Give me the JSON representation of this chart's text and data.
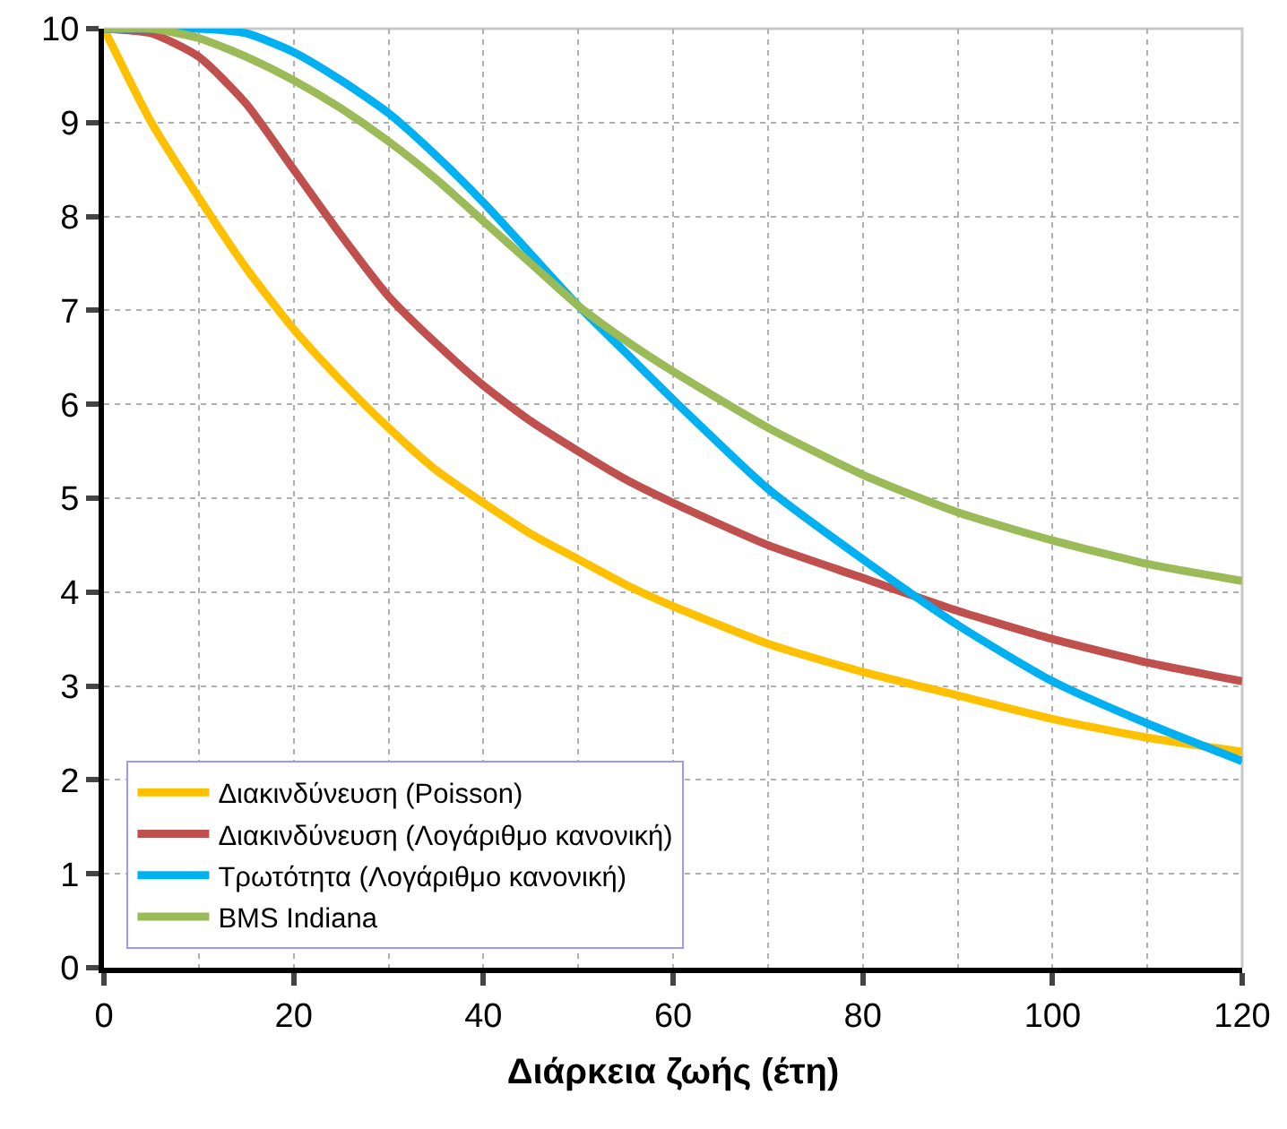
{
  "chart_data": {
    "type": "line",
    "xlabel": "Διάρκεια ζωής (έτη)",
    "x": [
      0,
      5,
      10,
      15,
      20,
      25,
      30,
      35,
      40,
      45,
      50,
      55,
      60,
      70,
      80,
      90,
      100,
      110,
      120
    ],
    "series": [
      {
        "name": "Διακινδύνευση (Poisson)",
        "color": "#ffc000",
        "values": [
          10,
          9.0,
          8.2,
          7.45,
          6.8,
          6.25,
          5.75,
          5.3,
          4.95,
          4.62,
          4.35,
          4.08,
          3.85,
          3.45,
          3.15,
          2.9,
          2.65,
          2.45,
          2.3
        ]
      },
      {
        "name": "Διακινδύνευση (Λογάριθμο κανονική)",
        "color": "#c0504d",
        "values": [
          10,
          9.95,
          9.7,
          9.2,
          8.5,
          7.8,
          7.15,
          6.65,
          6.2,
          5.82,
          5.5,
          5.2,
          4.95,
          4.5,
          4.15,
          3.8,
          3.5,
          3.25,
          3.05
        ]
      },
      {
        "name": "Τρωτότητα (Λογάριθμο κανονική)",
        "color": "#00b0f0",
        "values": [
          10,
          10,
          10,
          9.95,
          9.75,
          9.45,
          9.1,
          8.65,
          8.15,
          7.6,
          7.05,
          6.55,
          6.05,
          5.1,
          4.35,
          3.65,
          3.05,
          2.6,
          2.2
        ]
      },
      {
        "name": "BMS Indiana",
        "color": "#9bbb59",
        "values": [
          10,
          10,
          9.9,
          9.7,
          9.45,
          9.15,
          8.8,
          8.4,
          7.95,
          7.5,
          7.05,
          6.68,
          6.35,
          5.75,
          5.25,
          4.85,
          4.55,
          4.3,
          4.12
        ]
      }
    ],
    "xlim": [
      0,
      120
    ],
    "xticks": [
      0,
      20,
      40,
      60,
      80,
      100,
      120
    ],
    "ylim": [
      0,
      10
    ],
    "yticks": [
      0,
      1,
      2,
      3,
      4,
      5,
      6,
      7,
      8,
      9,
      10
    ],
    "grid": true,
    "legend": "bottom left",
    "marker": "none",
    "line_style": "solid"
  }
}
